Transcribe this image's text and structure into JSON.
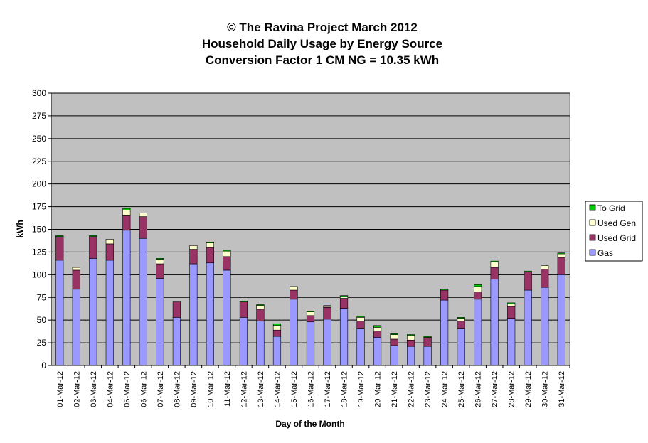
{
  "chart_data": {
    "type": "bar",
    "stacked": true,
    "title": [
      "© The Ravina Project March 2012",
      "Household Daily Usage by Energy Source",
      "Conversion Factor 1 CM NG = 10.35 kWh"
    ],
    "xlabel": "Day of the Month",
    "ylabel": "kWh",
    "ylim": [
      0,
      300
    ],
    "yticks": [
      0,
      25,
      50,
      75,
      100,
      125,
      150,
      175,
      200,
      225,
      250,
      275,
      300
    ],
    "grid": true,
    "legend_position": "right",
    "categories": [
      "01-Mar-12",
      "02-Mar-12",
      "03-Mar-12",
      "04-Mar-12",
      "05-Mar-12",
      "06-Mar-12",
      "07-Mar-12",
      "08-Mar-12",
      "09-Mar-12",
      "10-Mar-12",
      "11-Mar-12",
      "12-Mar-12",
      "13-Mar-12",
      "14-Mar-12",
      "15-Mar-12",
      "16-Mar-12",
      "17-Mar-12",
      "18-Mar-12",
      "19-Mar-12",
      "20-Mar-12",
      "21-Mar-12",
      "22-Mar-12",
      "23-Mar-12",
      "24-Mar-12",
      "25-Mar-12",
      "26-Mar-12",
      "27-Mar-12",
      "28-Mar-12",
      "29-Mar-12",
      "30-Mar-12",
      "31-Mar-12"
    ],
    "series": [
      {
        "name": "Gas",
        "color": "#9999ff",
        "values": [
          116,
          84,
          118,
          116,
          149,
          140,
          96,
          53,
          112,
          113,
          105,
          53,
          49,
          32,
          73,
          48,
          51,
          63,
          41,
          31,
          22,
          21,
          21,
          72,
          41,
          73,
          95,
          52,
          83,
          86,
          100
        ]
      },
      {
        "name": "Used Grid",
        "color": "#993366",
        "values": [
          26,
          21,
          24,
          18,
          16,
          24,
          16,
          17,
          16,
          17,
          15,
          17,
          13,
          7,
          10,
          7,
          13,
          11,
          8,
          7,
          7,
          7,
          10,
          11,
          8,
          8,
          13,
          13,
          20,
          20,
          19
        ]
      },
      {
        "name": "Used Gen",
        "color": "#ffffcc",
        "values": [
          0,
          3,
          0,
          5,
          6,
          4,
          5,
          0,
          4,
          5,
          6,
          0,
          4,
          5,
          4,
          4,
          1,
          2,
          4,
          4,
          5,
          5,
          0,
          0,
          3,
          6,
          6,
          3,
          0,
          4,
          4
        ]
      },
      {
        "name": "To Grid",
        "color": "#00cc00",
        "values": [
          1,
          0,
          1,
          0,
          2,
          0,
          1,
          0,
          0,
          1,
          1,
          1,
          1,
          2,
          0,
          1,
          1,
          1,
          1,
          2,
          1,
          1,
          1,
          1,
          1,
          2,
          1,
          1,
          1,
          0,
          1
        ]
      }
    ],
    "colors": {
      "plot_background": "#c0c0c0",
      "gridline": "#000000",
      "bar_edge": "#000000"
    }
  }
}
